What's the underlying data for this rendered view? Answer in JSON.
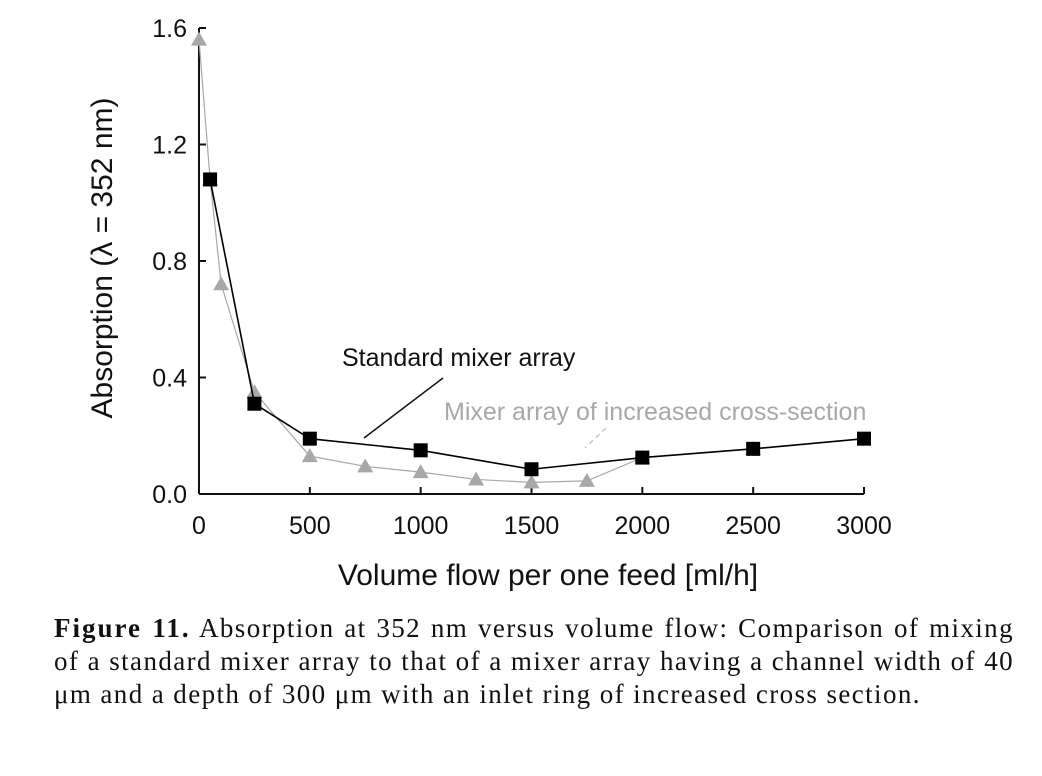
{
  "chart_data": {
    "type": "line",
    "xlabel": "Volume flow per one feed [ml/h]",
    "ylabel": "Absorption (λ = 352 nm)",
    "xlim": [
      0,
      3000
    ],
    "ylim": [
      0.0,
      1.6
    ],
    "xticks": [
      "0",
      "500",
      "1000",
      "1500",
      "2000",
      "2500",
      "3000"
    ],
    "yticks": [
      "0.0",
      "0.4",
      "0.8",
      "1.2",
      "1.6"
    ],
    "grid": false,
    "series": [
      {
        "name": "Standard mixer array",
        "marker": "square",
        "color": "#000000",
        "points": [
          {
            "x": 50,
            "y": 1.08
          },
          {
            "x": 250,
            "y": 0.31
          },
          {
            "x": 500,
            "y": 0.19
          },
          {
            "x": 1000,
            "y": 0.15
          },
          {
            "x": 1500,
            "y": 0.085
          },
          {
            "x": 2000,
            "y": 0.125
          },
          {
            "x": 2500,
            "y": 0.155
          },
          {
            "x": 3000,
            "y": 0.19
          }
        ]
      },
      {
        "name": "Mixer array of increased cross-section",
        "marker": "triangle",
        "color": "#a8a8a8",
        "points": [
          {
            "x": 0,
            "y": 1.56
          },
          {
            "x": 50,
            "y": 1.08
          },
          {
            "x": 100,
            "y": 0.72
          },
          {
            "x": 250,
            "y": 0.35
          },
          {
            "x": 500,
            "y": 0.13
          },
          {
            "x": 750,
            "y": 0.095
          },
          {
            "x": 1000,
            "y": 0.075
          },
          {
            "x": 1250,
            "y": 0.05
          },
          {
            "x": 1500,
            "y": 0.04
          },
          {
            "x": 1750,
            "y": 0.045
          },
          {
            "x": 2000,
            "y": 0.125
          },
          {
            "x": 2500,
            "y": 0.155
          }
        ]
      }
    ]
  },
  "caption": {
    "label": "Figure 11.",
    "text": "Absorption at 352 nm versus volume flow: Comparison of mixing of a standard mixer array to that of a mixer array having a channel width of 40 μm and a depth of 300 μm with an inlet ring of increased cross section."
  }
}
